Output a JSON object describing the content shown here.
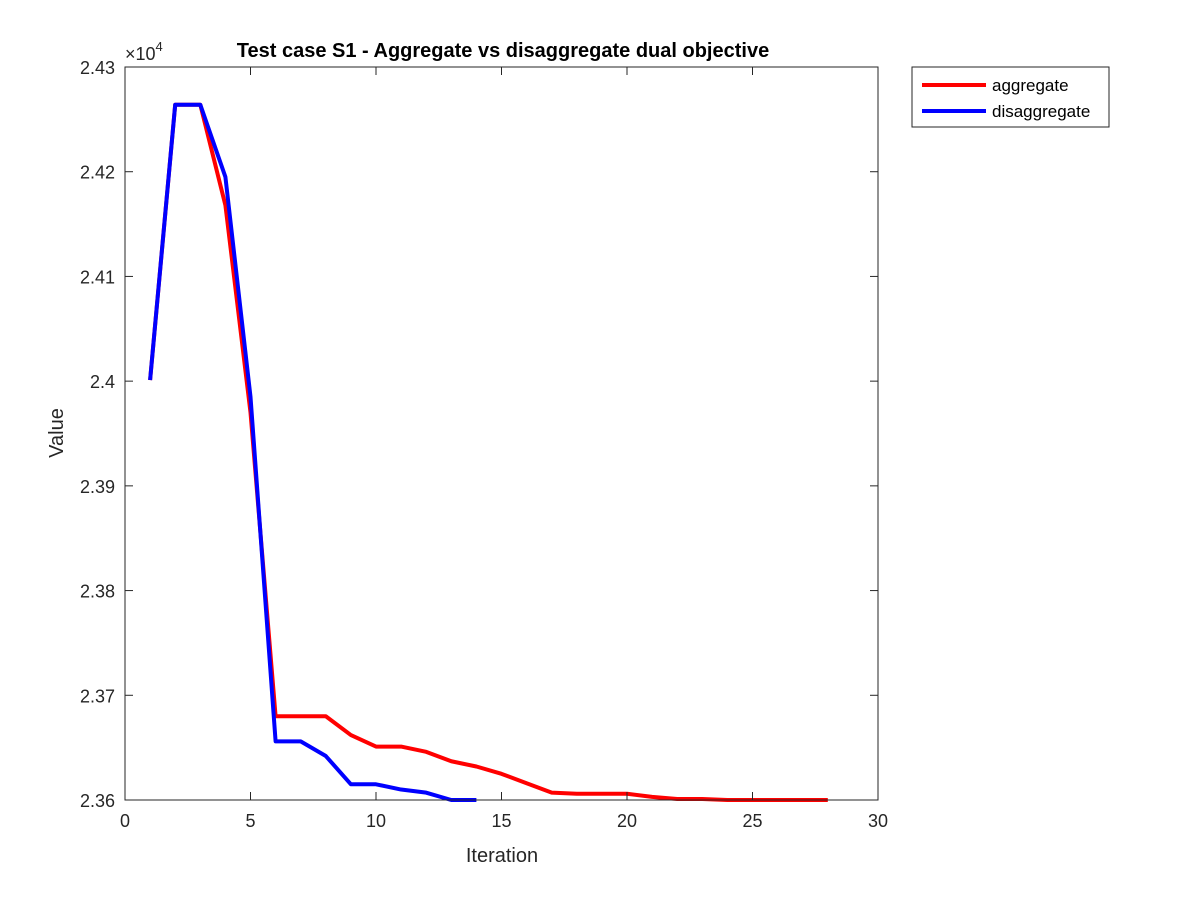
{
  "chart_data": {
    "type": "line",
    "title": "Test case S1 - Aggregate vs disaggregate dual objective",
    "xlabel": "Iteration",
    "ylabel": "Value",
    "exponent_label": "×10",
    "exponent_power": "4",
    "xlim": [
      0,
      30
    ],
    "ylim": [
      2.36,
      2.43
    ],
    "xticks": [
      0,
      5,
      10,
      15,
      20,
      25,
      30
    ],
    "xtick_labels": [
      "0",
      "5",
      "10",
      "15",
      "20",
      "25",
      "30"
    ],
    "yticks": [
      2.36,
      2.37,
      2.38,
      2.39,
      2.4,
      2.41,
      2.42,
      2.43
    ],
    "ytick_labels": [
      "2.36",
      "2.37",
      "2.38",
      "2.39",
      "2.4",
      "2.41",
      "2.42",
      "2.43"
    ],
    "grid": false,
    "legend_position": "outside-top-right",
    "series": [
      {
        "name": "aggregate",
        "color": "#ff0000",
        "x": [
          1,
          2,
          3,
          4,
          5,
          6,
          7,
          8,
          9,
          10,
          11,
          12,
          13,
          14,
          15,
          16,
          17,
          18,
          19,
          20,
          21,
          22,
          23,
          24,
          25,
          26,
          27,
          28
        ],
        "y": [
          2.4001,
          2.4264,
          2.4264,
          2.4168,
          2.397,
          2.368,
          2.368,
          2.368,
          2.3662,
          2.3651,
          2.3651,
          2.3646,
          2.3637,
          2.3632,
          2.3625,
          2.3616,
          2.3607,
          2.3606,
          2.3606,
          2.3606,
          2.3603,
          2.3601,
          2.3601,
          2.36,
          2.36,
          2.36,
          2.36,
          2.36
        ]
      },
      {
        "name": "disaggregate",
        "color": "#0000ff",
        "x": [
          1,
          2,
          3,
          4,
          5,
          6,
          7,
          8,
          9,
          10,
          11,
          12,
          13,
          14
        ],
        "y": [
          2.4001,
          2.4264,
          2.4264,
          2.4195,
          2.3985,
          2.3656,
          2.3656,
          2.3642,
          2.3615,
          2.3615,
          2.361,
          2.3607,
          2.36,
          2.36
        ]
      }
    ]
  }
}
